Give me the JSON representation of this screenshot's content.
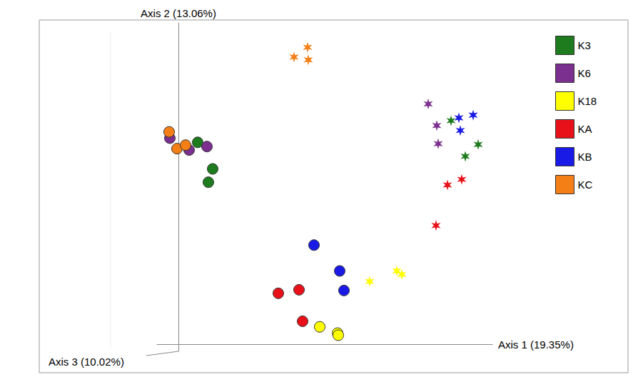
{
  "chart_data": {
    "type": "scatter",
    "x_label": "Axis 1 (19.35%)",
    "y_label": "Axis 2 (13.06%)",
    "z_label": "Axis 3 (10.02%)",
    "xlim": [
      -30,
      440
    ],
    "ylim": [
      -10,
      460
    ],
    "tick_labels": false,
    "grid": false,
    "legend": "upper right",
    "series": [
      {
        "name": "K3",
        "color": "#1e7b1e",
        "groups": [
          {
            "marker": "circle",
            "points": [
              [
                27,
                289
              ],
              [
                48,
                251
              ],
              [
                42,
                232
              ]
            ]
          },
          {
            "marker": "star",
            "points": [
              [
                382,
                320
              ],
              [
                420,
                286
              ],
              [
                402,
                269
              ]
            ]
          }
        ]
      },
      {
        "name": "K6",
        "color": "#7b2f8e",
        "groups": [
          {
            "marker": "circle",
            "points": [
              [
                -12,
                295
              ],
              [
                15,
                278
              ],
              [
                40,
                283
              ]
            ]
          },
          {
            "marker": "star",
            "points": [
              [
                350,
                344
              ],
              [
                362,
                313
              ],
              [
                364,
                287
              ]
            ]
          }
        ]
      },
      {
        "name": "K18",
        "color": "#ffff00",
        "groups": [
          {
            "marker": "circle",
            "points": [
              [
                198,
                25
              ],
              [
                223,
                16
              ],
              [
                224,
                13
              ]
            ]
          },
          {
            "marker": "star",
            "points": [
              [
                268,
                90
              ],
              [
                306,
                105
              ],
              [
                313,
                100
              ]
            ]
          }
        ]
      },
      {
        "name": "KA",
        "color": "#e8111a",
        "groups": [
          {
            "marker": "circle",
            "points": [
              [
                140,
                73
              ],
              [
                169,
                78
              ],
              [
                174,
                33
              ]
            ]
          },
          {
            "marker": "star",
            "points": [
              [
                377,
                228
              ],
              [
                397,
                236
              ],
              [
                361,
                170
              ]
            ]
          }
        ]
      },
      {
        "name": "KB",
        "color": "#1a1ae6",
        "groups": [
          {
            "marker": "circle",
            "points": [
              [
                190,
                142
              ],
              [
                226,
                105
              ],
              [
                232,
                77
              ]
            ]
          },
          {
            "marker": "star",
            "points": [
              [
                393,
                324
              ],
              [
                413,
                328
              ],
              [
                395,
                306
              ]
            ]
          }
        ]
      },
      {
        "name": "KC",
        "color": "#f57f17",
        "groups": [
          {
            "marker": "circle",
            "points": [
              [
                -13,
                304
              ],
              [
                -2,
                280
              ],
              [
                10,
                285
              ]
            ]
          },
          {
            "marker": "star",
            "points": [
              [
                162,
                411
              ],
              [
                181,
                425
              ],
              [
                182,
                407
              ]
            ]
          }
        ]
      }
    ]
  }
}
